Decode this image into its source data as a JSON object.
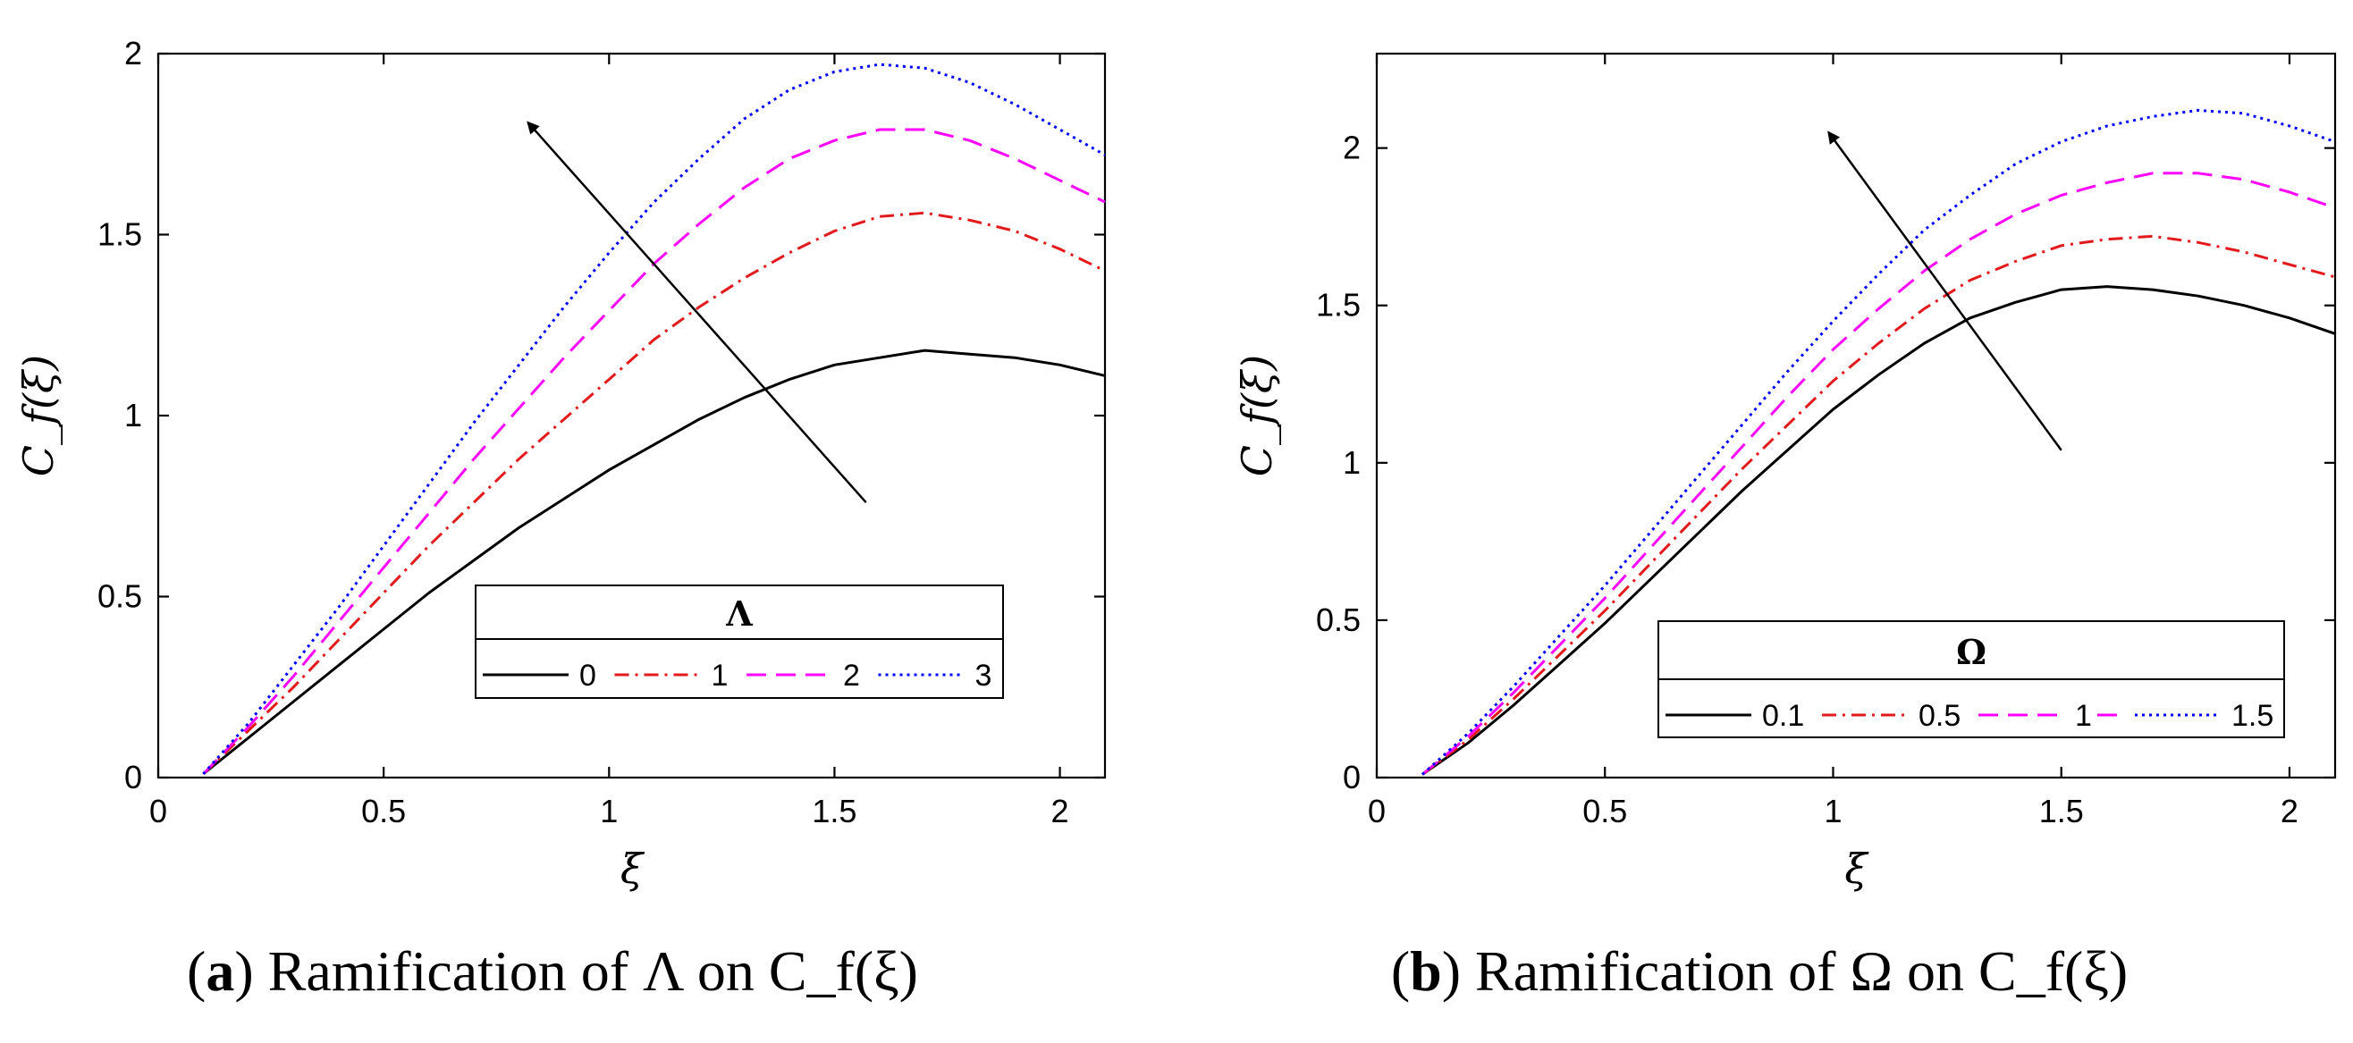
{
  "chart_data": [
    {
      "type": "line",
      "panel": "a",
      "caption": {
        "label": "a",
        "text": "Ramification of Λ on C_f(ξ)"
      },
      "xlabel": "ξ",
      "ylabel": "C_f(ξ)",
      "xlim": [
        0,
        2.1
      ],
      "ylim": [
        0,
        2
      ],
      "xticks": [
        0,
        0.5,
        1,
        1.5,
        2
      ],
      "yticks": [
        0,
        0.5,
        1,
        1.5,
        2
      ],
      "xtick_labels": [
        "0",
        "0.5",
        "1",
        "1.5",
        "2"
      ],
      "ytick_labels": [
        "0",
        "0.5",
        "1",
        "1.5",
        "2"
      ],
      "legend": {
        "title": "Λ",
        "placement": "lower-right",
        "orientation": "horizontal"
      },
      "annotation": {
        "type": "arrow",
        "from": [
          1.57,
          0.76
        ],
        "to": [
          0.82,
          1.81
        ]
      },
      "x": [
        0.1,
        0.2,
        0.3,
        0.4,
        0.5,
        0.6,
        0.7,
        0.8,
        0.9,
        1.0,
        1.1,
        1.2,
        1.3,
        1.4,
        1.5,
        1.6,
        1.7,
        1.8,
        1.9,
        2.0,
        2.1
      ],
      "series": [
        {
          "name": "0",
          "color": "#000000",
          "dash": "solid",
          "values": [
            0.01,
            0.11,
            0.21,
            0.31,
            0.41,
            0.51,
            0.6,
            0.69,
            0.77,
            0.85,
            0.92,
            0.99,
            1.05,
            1.1,
            1.14,
            1.16,
            1.18,
            1.17,
            1.16,
            1.14,
            1.11
          ]
        },
        {
          "name": "1",
          "color": "#e31a1c",
          "dash": "dashdot",
          "values": [
            0.01,
            0.13,
            0.25,
            0.38,
            0.51,
            0.64,
            0.76,
            0.88,
            0.99,
            1.1,
            1.21,
            1.3,
            1.38,
            1.45,
            1.51,
            1.55,
            1.56,
            1.54,
            1.51,
            1.46,
            1.4
          ]
        },
        {
          "name": "2",
          "color": "#ff00ff",
          "dash": "dashed",
          "values": [
            0.01,
            0.14,
            0.28,
            0.43,
            0.58,
            0.73,
            0.88,
            1.02,
            1.16,
            1.29,
            1.42,
            1.53,
            1.63,
            1.71,
            1.76,
            1.79,
            1.79,
            1.76,
            1.71,
            1.65,
            1.59
          ]
        },
        {
          "name": "3",
          "color": "#0000ff",
          "dash": "dotted",
          "values": [
            0.01,
            0.15,
            0.31,
            0.47,
            0.64,
            0.81,
            0.98,
            1.14,
            1.3,
            1.45,
            1.59,
            1.71,
            1.82,
            1.9,
            1.95,
            1.97,
            1.96,
            1.92,
            1.86,
            1.79,
            1.72
          ]
        }
      ]
    },
    {
      "type": "line",
      "panel": "b",
      "caption": {
        "label": "b",
        "text": "Ramification of Ω on C_f(ξ)"
      },
      "xlabel": "ξ",
      "ylabel": "C_f(ξ)",
      "xlim": [
        0,
        2.1
      ],
      "ylim": [
        0,
        2.3
      ],
      "xticks": [
        0,
        0.5,
        1,
        1.5,
        2
      ],
      "yticks": [
        0,
        0.5,
        1,
        1.5,
        2
      ],
      "xtick_labels": [
        "0",
        "0.5",
        "1",
        "1.5",
        "2"
      ],
      "ytick_labels": [
        "0",
        "0.5",
        "1",
        "1.5",
        "2"
      ],
      "legend": {
        "title": "Ω",
        "placement": "lower-right",
        "orientation": "horizontal"
      },
      "annotation": {
        "type": "arrow",
        "from": [
          1.5,
          1.04
        ],
        "to": [
          0.99,
          2.05
        ]
      },
      "x": [
        0.1,
        0.2,
        0.3,
        0.4,
        0.5,
        0.6,
        0.7,
        0.8,
        0.9,
        1.0,
        1.1,
        1.2,
        1.3,
        1.4,
        1.5,
        1.6,
        1.7,
        1.8,
        1.9,
        2.0,
        2.1
      ],
      "series": [
        {
          "name": "0.1",
          "color": "#000000",
          "dash": "solid",
          "values": [
            0.01,
            0.11,
            0.23,
            0.36,
            0.49,
            0.63,
            0.77,
            0.91,
            1.04,
            1.17,
            1.28,
            1.38,
            1.46,
            1.51,
            1.55,
            1.56,
            1.55,
            1.53,
            1.5,
            1.46,
            1.41
          ]
        },
        {
          "name": "0.5",
          "color": "#e31a1c",
          "dash": "dashdot",
          "values": [
            0.01,
            0.12,
            0.25,
            0.39,
            0.53,
            0.68,
            0.83,
            0.98,
            1.12,
            1.26,
            1.38,
            1.49,
            1.58,
            1.64,
            1.69,
            1.71,
            1.72,
            1.7,
            1.67,
            1.63,
            1.59
          ]
        },
        {
          "name": "1",
          "color": "#ff00ff",
          "dash": "dashed",
          "values": [
            0.01,
            0.13,
            0.27,
            0.42,
            0.57,
            0.73,
            0.89,
            1.05,
            1.21,
            1.36,
            1.49,
            1.61,
            1.71,
            1.79,
            1.85,
            1.89,
            1.92,
            1.92,
            1.9,
            1.86,
            1.81
          ]
        },
        {
          "name": "1.5",
          "color": "#0000ff",
          "dash": "dotted",
          "values": [
            0.01,
            0.14,
            0.29,
            0.45,
            0.61,
            0.78,
            0.95,
            1.12,
            1.29,
            1.45,
            1.6,
            1.74,
            1.85,
            1.95,
            2.02,
            2.07,
            2.1,
            2.12,
            2.11,
            2.07,
            2.02
          ]
        }
      ]
    }
  ]
}
